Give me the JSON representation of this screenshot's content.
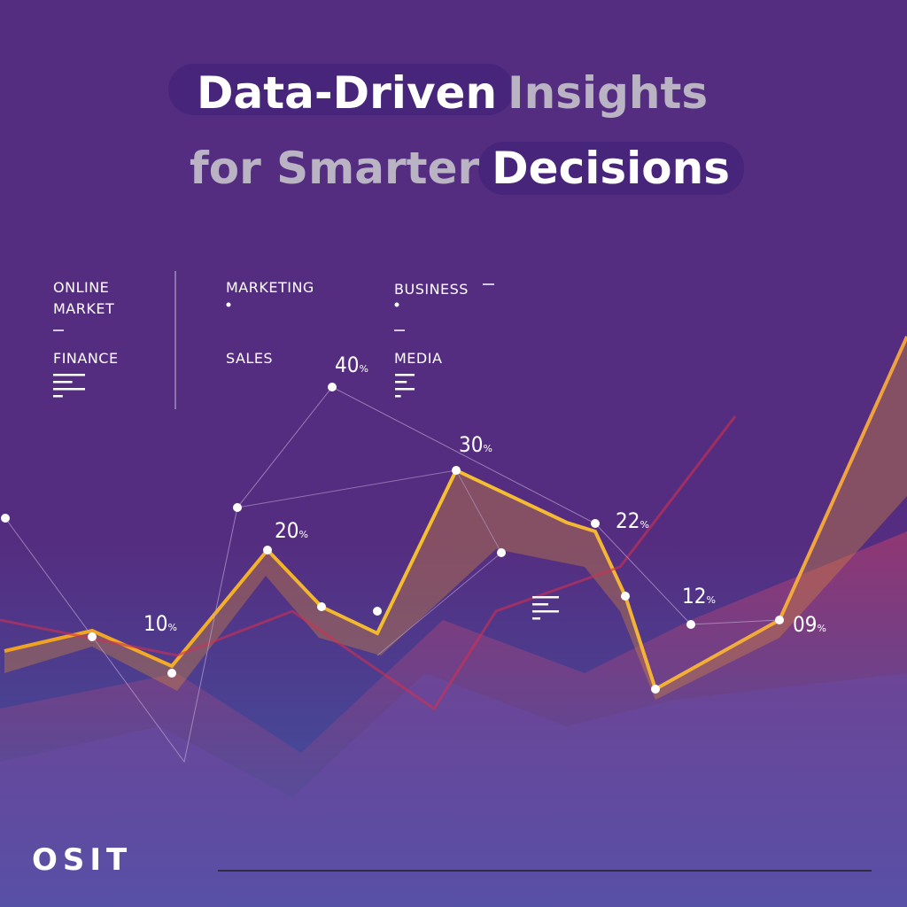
{
  "title": {
    "line1": [
      "Data-Driven",
      "Insights"
    ],
    "line2": [
      "for Smarter",
      "Decisions"
    ]
  },
  "categories": [
    {
      "lines": [
        "ONLINE",
        "MARKET"
      ]
    },
    {
      "lines": [
        "FINANCE"
      ]
    },
    {
      "lines": [
        "MARKETING"
      ]
    },
    {
      "lines": [
        "SALES"
      ]
    },
    {
      "lines": [
        "BUSINESS"
      ]
    },
    {
      "lines": [
        "MEDIA"
      ]
    }
  ],
  "points": [
    {
      "number": "40",
      "unit": "%"
    },
    {
      "number": "30",
      "unit": "%"
    },
    {
      "number": "20",
      "unit": "%"
    },
    {
      "number": "10",
      "unit": "%"
    },
    {
      "number": "22",
      "unit": "%"
    },
    {
      "number": "12",
      "unit": "%"
    },
    {
      "number": "09",
      "unit": "%"
    }
  ],
  "logo": "OSIT"
}
